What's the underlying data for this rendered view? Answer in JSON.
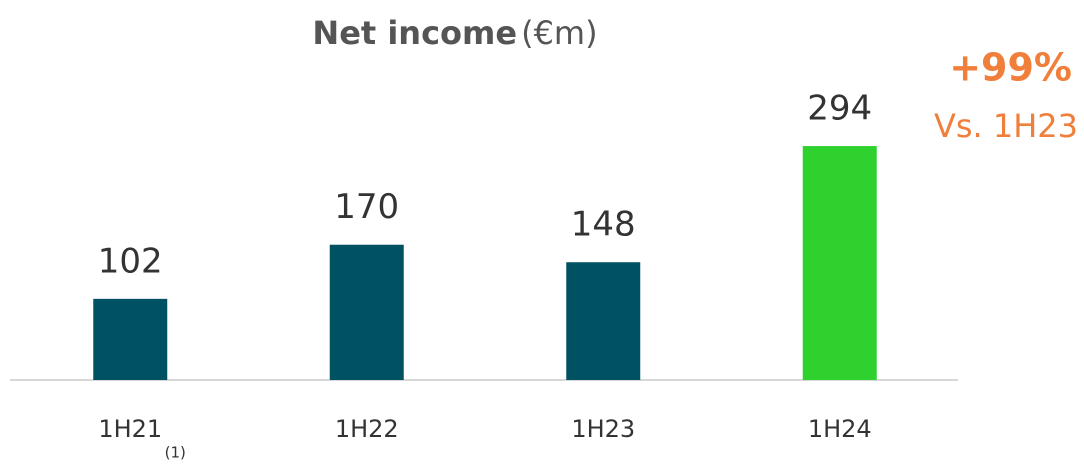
{
  "chart_data": {
    "type": "bar",
    "title": "Net income",
    "title_unit": "(€m)",
    "categories": [
      "1H21",
      "1H22",
      "1H23",
      "1H24"
    ],
    "category_notes": [
      "(1)",
      null,
      null,
      null
    ],
    "values": [
      102,
      170,
      148,
      294
    ],
    "colors": [
      "#005263",
      "#005263",
      "#005263",
      "#2ed12e"
    ],
    "ylim": [
      0,
      350
    ],
    "annotation": {
      "value": "+99%",
      "text": "Vs. 1H23",
      "color": "#f07f3c"
    }
  }
}
